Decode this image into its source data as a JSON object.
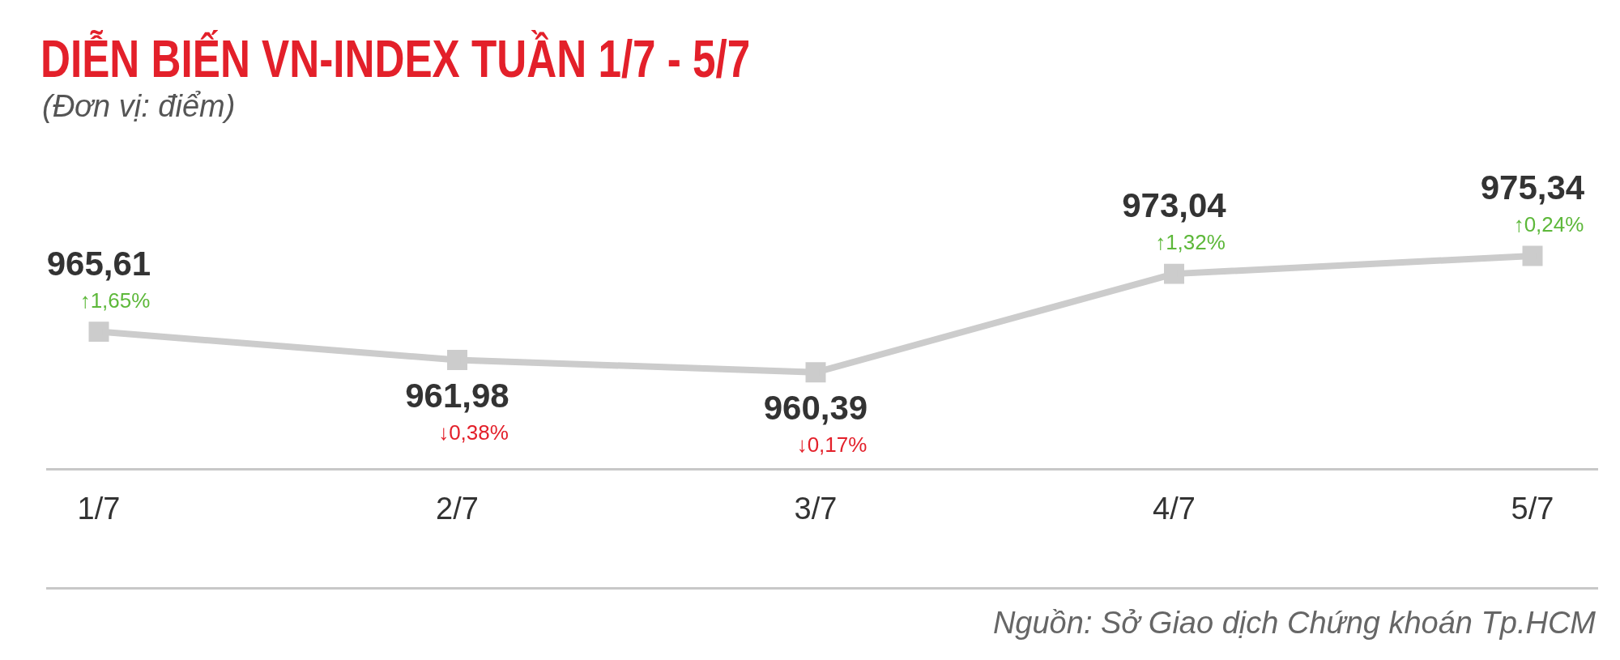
{
  "chart_data": {
    "type": "line",
    "title": "DIỄN BIẾN VN-INDEX TUẦN 1/7 - 5/7",
    "subtitle": "(Đơn vị: điểm)",
    "categories": [
      "1/7",
      "2/7",
      "3/7",
      "4/7",
      "5/7"
    ],
    "values": [
      965.61,
      961.98,
      960.39,
      973.04,
      975.34
    ],
    "value_labels": [
      "965,61",
      "961,98",
      "960,39",
      "973,04",
      "975,34"
    ],
    "color": "#cccccc",
    "marker": "square",
    "line_style": "solid",
    "grid": false,
    "legend": false,
    "tick_labels": "x",
    "annotations": [
      {
        "text": "↑1,65%",
        "x": "1/7",
        "y": 965.61
      },
      {
        "text": "↓0,38%",
        "x": "2/7",
        "y": 961.98
      },
      {
        "text": "↓0,17%",
        "x": "3/7",
        "y": 960.39
      },
      {
        "text": "↑1,32%",
        "x": "4/7",
        "y": 973.04
      },
      {
        "text": "↑0,24%",
        "x": "5/7",
        "y": 975.34
      },
      "Nguồn: Sở Giao dịch Chứng khoán Tp.HCM"
    ]
  }
}
